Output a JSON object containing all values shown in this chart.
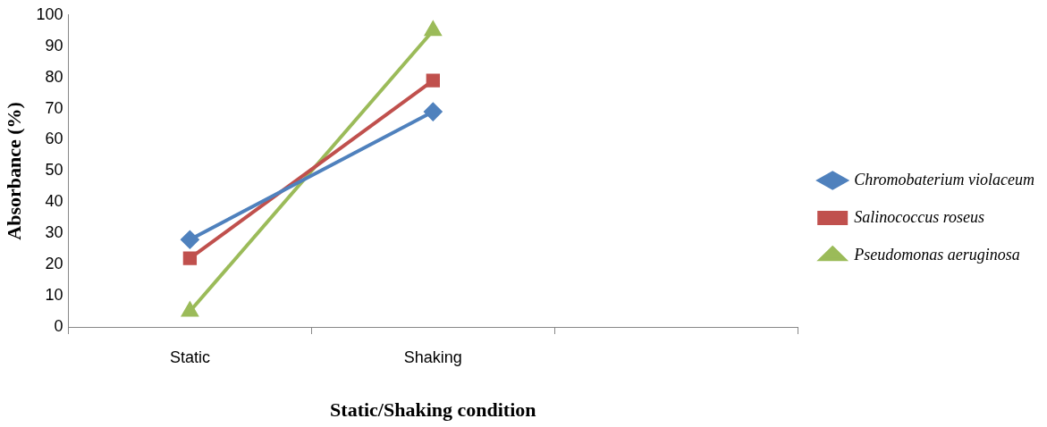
{
  "chart_data": {
    "type": "line",
    "xlabel": "Static/Shaking condition",
    "ylabel": "Absorbance (%)",
    "categories": [
      "Static",
      "Shaking",
      null
    ],
    "series": [
      {
        "name": "Chromobaterium violaceum",
        "color": "#4f81bd",
        "marker": "diamond",
        "values": [
          28,
          69,
          null
        ]
      },
      {
        "name": "Salinococcus roseus",
        "color": "#c0504d",
        "marker": "square",
        "values": [
          22,
          79,
          null
        ]
      },
      {
        "name": "Pseudomonas aeruginosa",
        "color": "#9bbb59",
        "marker": "triangle",
        "values": [
          5,
          95,
          null
        ]
      }
    ],
    "ylim": [
      0,
      100
    ],
    "yticks": [
      0,
      10,
      20,
      30,
      40,
      50,
      60,
      70,
      80,
      90,
      100
    ],
    "grid": false,
    "legend": "right",
    "line_style": "solid"
  }
}
